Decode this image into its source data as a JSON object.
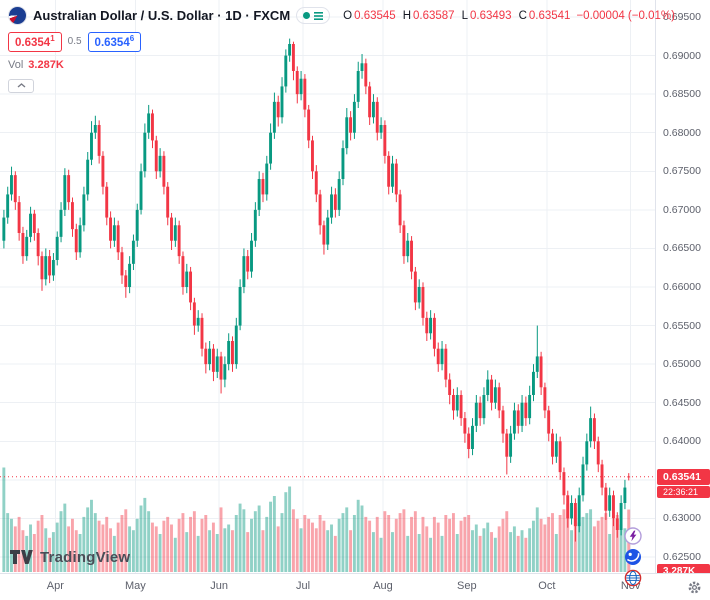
{
  "theme": {
    "up": "#089981",
    "down": "#f23645",
    "accent_blue": "#2962ff",
    "text": "#131722",
    "muted": "#787b86",
    "grid": "#edf0f4",
    "axis_border": "#e0e3eb"
  },
  "header": {
    "title": "Australian Dollar / U.S. Dollar · 1D · FXCM",
    "ohlc": {
      "o_label": "O",
      "o": "0.63545",
      "h_label": "H",
      "h": "0.63587",
      "l_label": "L",
      "l": "0.63493",
      "c_label": "C",
      "c": "0.63541",
      "change": "−0.00004 (−0.01%)"
    },
    "bid": {
      "value": "0.6354",
      "sup": "1"
    },
    "spread": "0.5",
    "ask": {
      "value": "0.6354",
      "sup": "6"
    },
    "vol_label": "Vol",
    "vol_value": "3.287K"
  },
  "axes": {
    "price_labels": [
      "0.69500",
      "0.69000",
      "0.68500",
      "0.68000",
      "0.67500",
      "0.67000",
      "0.66500",
      "0.66000",
      "0.65500",
      "0.65000",
      "0.64500",
      "0.64000",
      "0.63500",
      "0.63000",
      "0.62500"
    ],
    "time_labels": [
      {
        "label": "Apr",
        "index": 14
      },
      {
        "label": "May",
        "index": 35
      },
      {
        "label": "Jun",
        "index": 57
      },
      {
        "label": "Jul",
        "index": 79
      },
      {
        "label": "Aug",
        "index": 100
      },
      {
        "label": "Sep",
        "index": 122
      },
      {
        "label": "Oct",
        "index": 143
      },
      {
        "label": "Nov",
        "index": 165
      }
    ],
    "last_price": {
      "label": "0.63541",
      "countdown": "22:36:21",
      "value": 0.63541
    },
    "volume_axis_label": "3.287K"
  },
  "logo": {
    "text": "TradingView"
  },
  "chart_data": {
    "type": "candlestick",
    "symbol": "AUD/USD",
    "interval": "1D",
    "exchange": "FXCM",
    "title": "Australian Dollar / U.S. Dollar daily candles with volume overlay",
    "y_axis": {
      "min": 0.625,
      "max": 0.695,
      "tick": 0.005
    },
    "x_categories": [
      "Apr",
      "May",
      "Jun",
      "Jul",
      "Aug",
      "Sep",
      "Oct",
      "Nov"
    ],
    "volume_unit": "K",
    "last_close": 0.63541,
    "colors": {
      "up": "#089981",
      "down": "#f23645",
      "vol_up": "rgba(8,153,129,0.45)",
      "vol_down": "rgba(242,54,69,0.45)"
    },
    "candles_format": [
      "open",
      "high",
      "low",
      "close",
      "volume_K"
    ],
    "candles": [
      [
        0.666,
        0.67,
        0.665,
        0.669,
        5.5
      ],
      [
        0.669,
        0.673,
        0.6682,
        0.672,
        3.1
      ],
      [
        0.672,
        0.6756,
        0.6712,
        0.6745,
        2.8
      ],
      [
        0.6745,
        0.675,
        0.67,
        0.671,
        2.4
      ],
      [
        0.671,
        0.6718,
        0.666,
        0.667,
        2.9
      ],
      [
        0.667,
        0.6678,
        0.663,
        0.664,
        2.2
      ],
      [
        0.664,
        0.6674,
        0.6634,
        0.6665,
        1.9
      ],
      [
        0.6665,
        0.6704,
        0.6658,
        0.6695,
        2.5
      ],
      [
        0.6695,
        0.67,
        0.666,
        0.667,
        2.0
      ],
      [
        0.667,
        0.6676,
        0.6628,
        0.664,
        2.7
      ],
      [
        0.664,
        0.6646,
        0.6595,
        0.661,
        3.0
      ],
      [
        0.661,
        0.665,
        0.6602,
        0.664,
        2.3
      ],
      [
        0.664,
        0.6648,
        0.6605,
        0.6615,
        1.8
      ],
      [
        0.6615,
        0.6644,
        0.6608,
        0.6635,
        2.1
      ],
      [
        0.6635,
        0.6672,
        0.6628,
        0.6665,
        2.6
      ],
      [
        0.6665,
        0.671,
        0.6658,
        0.67,
        3.2
      ],
      [
        0.67,
        0.6754,
        0.6692,
        0.6745,
        3.6
      ],
      [
        0.6745,
        0.6752,
        0.67,
        0.671,
        2.4
      ],
      [
        0.671,
        0.6716,
        0.6665,
        0.6675,
        2.8
      ],
      [
        0.6675,
        0.6682,
        0.6635,
        0.6645,
        2.2
      ],
      [
        0.6645,
        0.669,
        0.6638,
        0.668,
        2.0
      ],
      [
        0.668,
        0.673,
        0.6672,
        0.672,
        2.9
      ],
      [
        0.672,
        0.6775,
        0.6712,
        0.6765,
        3.4
      ],
      [
        0.6765,
        0.6815,
        0.6758,
        0.68,
        3.8
      ],
      [
        0.68,
        0.6822,
        0.6792,
        0.681,
        3.1
      ],
      [
        0.681,
        0.6816,
        0.676,
        0.677,
        2.7
      ],
      [
        0.677,
        0.6776,
        0.672,
        0.673,
        2.5
      ],
      [
        0.673,
        0.6736,
        0.668,
        0.669,
        2.9
      ],
      [
        0.669,
        0.6698,
        0.665,
        0.666,
        2.3
      ],
      [
        0.666,
        0.669,
        0.6652,
        0.668,
        1.9
      ],
      [
        0.668,
        0.6686,
        0.6635,
        0.6645,
        2.6
      ],
      [
        0.6645,
        0.6652,
        0.6604,
        0.6615,
        3.0
      ],
      [
        0.6615,
        0.6622,
        0.6586,
        0.66,
        3.3
      ],
      [
        0.66,
        0.664,
        0.6592,
        0.663,
        2.4
      ],
      [
        0.663,
        0.6668,
        0.6622,
        0.666,
        2.2
      ],
      [
        0.666,
        0.6708,
        0.6652,
        0.67,
        2.8
      ],
      [
        0.67,
        0.676,
        0.6694,
        0.675,
        3.5
      ],
      [
        0.675,
        0.6812,
        0.6742,
        0.68,
        3.9
      ],
      [
        0.68,
        0.6836,
        0.6792,
        0.6825,
        3.2
      ],
      [
        0.6825,
        0.683,
        0.678,
        0.679,
        2.6
      ],
      [
        0.679,
        0.6796,
        0.674,
        0.675,
        2.4
      ],
      [
        0.675,
        0.678,
        0.6742,
        0.677,
        2.0
      ],
      [
        0.677,
        0.6776,
        0.672,
        0.673,
        2.7
      ],
      [
        0.673,
        0.6736,
        0.668,
        0.669,
        2.9
      ],
      [
        0.669,
        0.6696,
        0.6648,
        0.666,
        2.5
      ],
      [
        0.666,
        0.669,
        0.6652,
        0.668,
        1.8
      ],
      [
        0.668,
        0.6686,
        0.663,
        0.664,
        2.8
      ],
      [
        0.664,
        0.6646,
        0.659,
        0.66,
        3.1
      ],
      [
        0.66,
        0.663,
        0.6592,
        0.662,
        2.1
      ],
      [
        0.662,
        0.6626,
        0.657,
        0.658,
        2.9
      ],
      [
        0.658,
        0.6586,
        0.6538,
        0.655,
        3.2
      ],
      [
        0.655,
        0.657,
        0.6542,
        0.656,
        1.9
      ],
      [
        0.656,
        0.6566,
        0.651,
        0.652,
        2.8
      ],
      [
        0.652,
        0.6528,
        0.6488,
        0.65,
        3.0
      ],
      [
        0.65,
        0.653,
        0.6492,
        0.652,
        2.2
      ],
      [
        0.652,
        0.6526,
        0.6478,
        0.649,
        2.6
      ],
      [
        0.649,
        0.652,
        0.6482,
        0.651,
        2.0
      ],
      [
        0.651,
        0.6516,
        0.6462,
        0.648,
        3.4
      ],
      [
        0.648,
        0.651,
        0.647,
        0.65,
        2.3
      ],
      [
        0.65,
        0.654,
        0.6492,
        0.653,
        2.5
      ],
      [
        0.653,
        0.6536,
        0.649,
        0.65,
        2.2
      ],
      [
        0.65,
        0.656,
        0.6494,
        0.655,
        3.0
      ],
      [
        0.655,
        0.661,
        0.6544,
        0.66,
        3.6
      ],
      [
        0.66,
        0.665,
        0.6592,
        0.664,
        3.3
      ],
      [
        0.664,
        0.6648,
        0.661,
        0.662,
        2.1
      ],
      [
        0.662,
        0.667,
        0.6612,
        0.666,
        2.8
      ],
      [
        0.666,
        0.671,
        0.6652,
        0.67,
        3.2
      ],
      [
        0.67,
        0.675,
        0.6692,
        0.674,
        3.5
      ],
      [
        0.674,
        0.6748,
        0.671,
        0.672,
        2.2
      ],
      [
        0.672,
        0.677,
        0.6712,
        0.676,
        2.9
      ],
      [
        0.676,
        0.6812,
        0.6752,
        0.68,
        3.7
      ],
      [
        0.68,
        0.6852,
        0.6792,
        0.684,
        4.0
      ],
      [
        0.684,
        0.6848,
        0.6808,
        0.682,
        2.4
      ],
      [
        0.682,
        0.6872,
        0.6812,
        0.686,
        3.1
      ],
      [
        0.686,
        0.6908,
        0.6852,
        0.69,
        4.2
      ],
      [
        0.69,
        0.6922,
        0.6892,
        0.6915,
        4.5
      ],
      [
        0.6915,
        0.6918,
        0.6868,
        0.688,
        3.3
      ],
      [
        0.688,
        0.6886,
        0.6838,
        0.685,
        2.8
      ],
      [
        0.685,
        0.688,
        0.6842,
        0.687,
        2.3
      ],
      [
        0.687,
        0.6876,
        0.682,
        0.683,
        3.0
      ],
      [
        0.683,
        0.6836,
        0.678,
        0.679,
        2.8
      ],
      [
        0.679,
        0.6796,
        0.674,
        0.675,
        2.6
      ],
      [
        0.675,
        0.6758,
        0.671,
        0.672,
        2.3
      ],
      [
        0.672,
        0.6726,
        0.6668,
        0.668,
        3.0
      ],
      [
        0.668,
        0.6686,
        0.6642,
        0.6655,
        2.7
      ],
      [
        0.6655,
        0.67,
        0.6648,
        0.669,
        2.2
      ],
      [
        0.669,
        0.673,
        0.6682,
        0.672,
        2.5
      ],
      [
        0.672,
        0.6728,
        0.669,
        0.67,
        1.9
      ],
      [
        0.67,
        0.675,
        0.6692,
        0.674,
        2.8
      ],
      [
        0.674,
        0.679,
        0.6732,
        0.678,
        3.1
      ],
      [
        0.678,
        0.6832,
        0.6772,
        0.682,
        3.4
      ],
      [
        0.682,
        0.6828,
        0.679,
        0.68,
        2.2
      ],
      [
        0.68,
        0.685,
        0.6792,
        0.684,
        3.0
      ],
      [
        0.684,
        0.6892,
        0.6832,
        0.688,
        3.8
      ],
      [
        0.688,
        0.6902,
        0.687,
        0.689,
        3.5
      ],
      [
        0.689,
        0.6896,
        0.685,
        0.686,
        2.9
      ],
      [
        0.686,
        0.6866,
        0.681,
        0.682,
        2.7
      ],
      [
        0.682,
        0.685,
        0.6812,
        0.684,
        2.1
      ],
      [
        0.684,
        0.6846,
        0.679,
        0.68,
        2.9
      ],
      [
        0.68,
        0.682,
        0.6792,
        0.681,
        1.8
      ],
      [
        0.681,
        0.6816,
        0.676,
        0.677,
        3.2
      ],
      [
        0.677,
        0.6776,
        0.672,
        0.673,
        3.0
      ],
      [
        0.673,
        0.677,
        0.6722,
        0.676,
        2.1
      ],
      [
        0.676,
        0.6766,
        0.671,
        0.672,
        2.8
      ],
      [
        0.672,
        0.6726,
        0.667,
        0.668,
        3.1
      ],
      [
        0.668,
        0.6686,
        0.663,
        0.664,
        3.3
      ],
      [
        0.664,
        0.667,
        0.6632,
        0.666,
        1.9
      ],
      [
        0.666,
        0.6666,
        0.661,
        0.662,
        2.9
      ],
      [
        0.662,
        0.6626,
        0.657,
        0.658,
        3.2
      ],
      [
        0.658,
        0.661,
        0.6572,
        0.66,
        2.0
      ],
      [
        0.66,
        0.6606,
        0.655,
        0.656,
        2.9
      ],
      [
        0.656,
        0.6568,
        0.653,
        0.654,
        2.4
      ],
      [
        0.654,
        0.657,
        0.6532,
        0.656,
        1.8
      ],
      [
        0.656,
        0.6566,
        0.651,
        0.652,
        2.9
      ],
      [
        0.652,
        0.6528,
        0.649,
        0.65,
        2.6
      ],
      [
        0.65,
        0.653,
        0.6492,
        0.652,
        1.9
      ],
      [
        0.652,
        0.6526,
        0.647,
        0.648,
        3.0
      ],
      [
        0.648,
        0.6488,
        0.6448,
        0.646,
        2.8
      ],
      [
        0.646,
        0.6468,
        0.6428,
        0.644,
        3.1
      ],
      [
        0.644,
        0.647,
        0.6432,
        0.646,
        2.0
      ],
      [
        0.646,
        0.6466,
        0.642,
        0.643,
        2.7
      ],
      [
        0.643,
        0.6438,
        0.6398,
        0.641,
        2.9
      ],
      [
        0.641,
        0.6418,
        0.6378,
        0.639,
        3.0
      ],
      [
        0.639,
        0.643,
        0.6382,
        0.642,
        2.2
      ],
      [
        0.642,
        0.646,
        0.6412,
        0.645,
        2.5
      ],
      [
        0.645,
        0.6458,
        0.642,
        0.643,
        1.9
      ],
      [
        0.643,
        0.647,
        0.6422,
        0.646,
        2.3
      ],
      [
        0.646,
        0.6492,
        0.6452,
        0.648,
        2.6
      ],
      [
        0.648,
        0.6486,
        0.644,
        0.645,
        2.1
      ],
      [
        0.645,
        0.648,
        0.6442,
        0.647,
        1.8
      ],
      [
        0.647,
        0.6476,
        0.643,
        0.644,
        2.4
      ],
      [
        0.644,
        0.6446,
        0.6398,
        0.641,
        2.8
      ],
      [
        0.641,
        0.6416,
        0.6357,
        0.638,
        3.2
      ],
      [
        0.638,
        0.642,
        0.6372,
        0.641,
        2.1
      ],
      [
        0.641,
        0.645,
        0.6402,
        0.644,
        2.4
      ],
      [
        0.644,
        0.6448,
        0.641,
        0.642,
        1.9
      ],
      [
        0.642,
        0.646,
        0.6412,
        0.645,
        2.2
      ],
      [
        0.645,
        0.6458,
        0.642,
        0.643,
        1.8
      ],
      [
        0.643,
        0.6472,
        0.6422,
        0.646,
        2.3
      ],
      [
        0.646,
        0.65,
        0.6452,
        0.649,
        2.7
      ],
      [
        0.649,
        0.655,
        0.6482,
        0.651,
        3.4
      ],
      [
        0.651,
        0.6516,
        0.646,
        0.647,
        2.8
      ],
      [
        0.647,
        0.6476,
        0.643,
        0.644,
        2.5
      ],
      [
        0.644,
        0.6446,
        0.64,
        0.641,
        2.9
      ],
      [
        0.641,
        0.6416,
        0.637,
        0.638,
        3.1
      ],
      [
        0.638,
        0.641,
        0.6372,
        0.64,
        2.0
      ],
      [
        0.64,
        0.6406,
        0.635,
        0.636,
        3.0
      ],
      [
        0.636,
        0.6366,
        0.6318,
        0.633,
        3.3
      ],
      [
        0.633,
        0.6336,
        0.6288,
        0.63,
        3.6
      ],
      [
        0.63,
        0.633,
        0.6292,
        0.632,
        2.2
      ],
      [
        0.632,
        0.6326,
        0.627,
        0.629,
        3.4
      ],
      [
        0.629,
        0.634,
        0.6282,
        0.633,
        2.6
      ],
      [
        0.633,
        0.638,
        0.6322,
        0.637,
        2.9
      ],
      [
        0.637,
        0.641,
        0.6362,
        0.64,
        3.1
      ],
      [
        0.64,
        0.6445,
        0.6392,
        0.643,
        3.3
      ],
      [
        0.643,
        0.6436,
        0.639,
        0.64,
        2.4
      ],
      [
        0.64,
        0.6406,
        0.636,
        0.637,
        2.7
      ],
      [
        0.637,
        0.6376,
        0.633,
        0.634,
        2.9
      ],
      [
        0.634,
        0.6346,
        0.6298,
        0.631,
        3.1
      ],
      [
        0.631,
        0.634,
        0.6302,
        0.633,
        2.0
      ],
      [
        0.633,
        0.6336,
        0.629,
        0.63,
        2.8
      ],
      [
        0.63,
        0.6308,
        0.6275,
        0.6285,
        3.0
      ],
      [
        0.6285,
        0.633,
        0.6278,
        0.632,
        2.5
      ],
      [
        0.632,
        0.635,
        0.6312,
        0.634,
        2.3
      ],
      [
        0.63545,
        0.63587,
        0.63493,
        0.63541,
        3.287
      ]
    ]
  }
}
